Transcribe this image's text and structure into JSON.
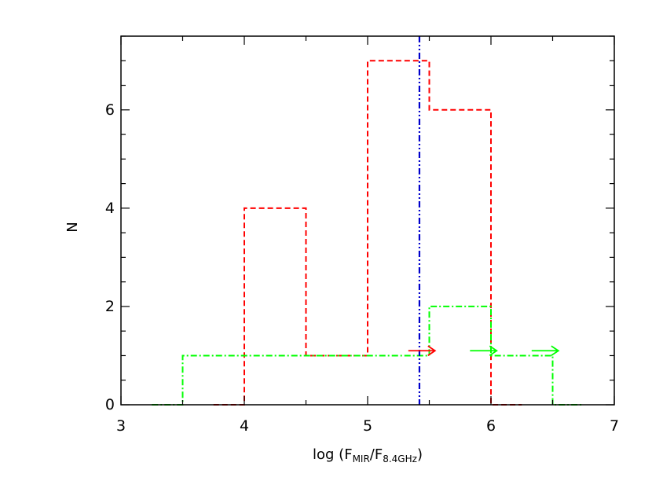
{
  "chart_data": {
    "type": "histogram",
    "xlabel": {
      "prefix": "log (F",
      "sub1": "MIR",
      "mid": "/F",
      "sub2": "8.4GHz",
      "suffix": ")"
    },
    "ylabel": "N",
    "xlim": [
      3,
      7
    ],
    "ylim": [
      0,
      7.5
    ],
    "xticks": [
      3,
      4,
      5,
      6,
      7
    ],
    "yticks": [
      0,
      2,
      4,
      6
    ],
    "xminor": 0.5,
    "yminor": 0.5,
    "series": [
      {
        "style": "dashed",
        "color": "#ff0000",
        "bin_edges": [
          3.75,
          4.0,
          4.5,
          5.0,
          5.5,
          6.0,
          6.25
        ],
        "counts": [
          0,
          4,
          1,
          7,
          6,
          0
        ]
      },
      {
        "style": "dash-dot",
        "color": "#00ff00",
        "bin_edges": [
          3.25,
          3.5,
          5.5,
          6.0,
          6.5,
          6.75
        ],
        "counts": [
          0,
          1,
          2,
          1,
          0
        ]
      }
    ],
    "vertical_lines": [
      {
        "x": 5.42,
        "style": "dash-dot-dot",
        "color": "#0000cc"
      }
    ],
    "lower_limit_arrows": [
      {
        "x": 5.33,
        "y": 1.1,
        "color": "#ff0000"
      },
      {
        "x": 5.83,
        "y": 1.1,
        "color": "#00ff00"
      },
      {
        "x": 6.33,
        "y": 1.1,
        "color": "#00ff00"
      }
    ]
  }
}
